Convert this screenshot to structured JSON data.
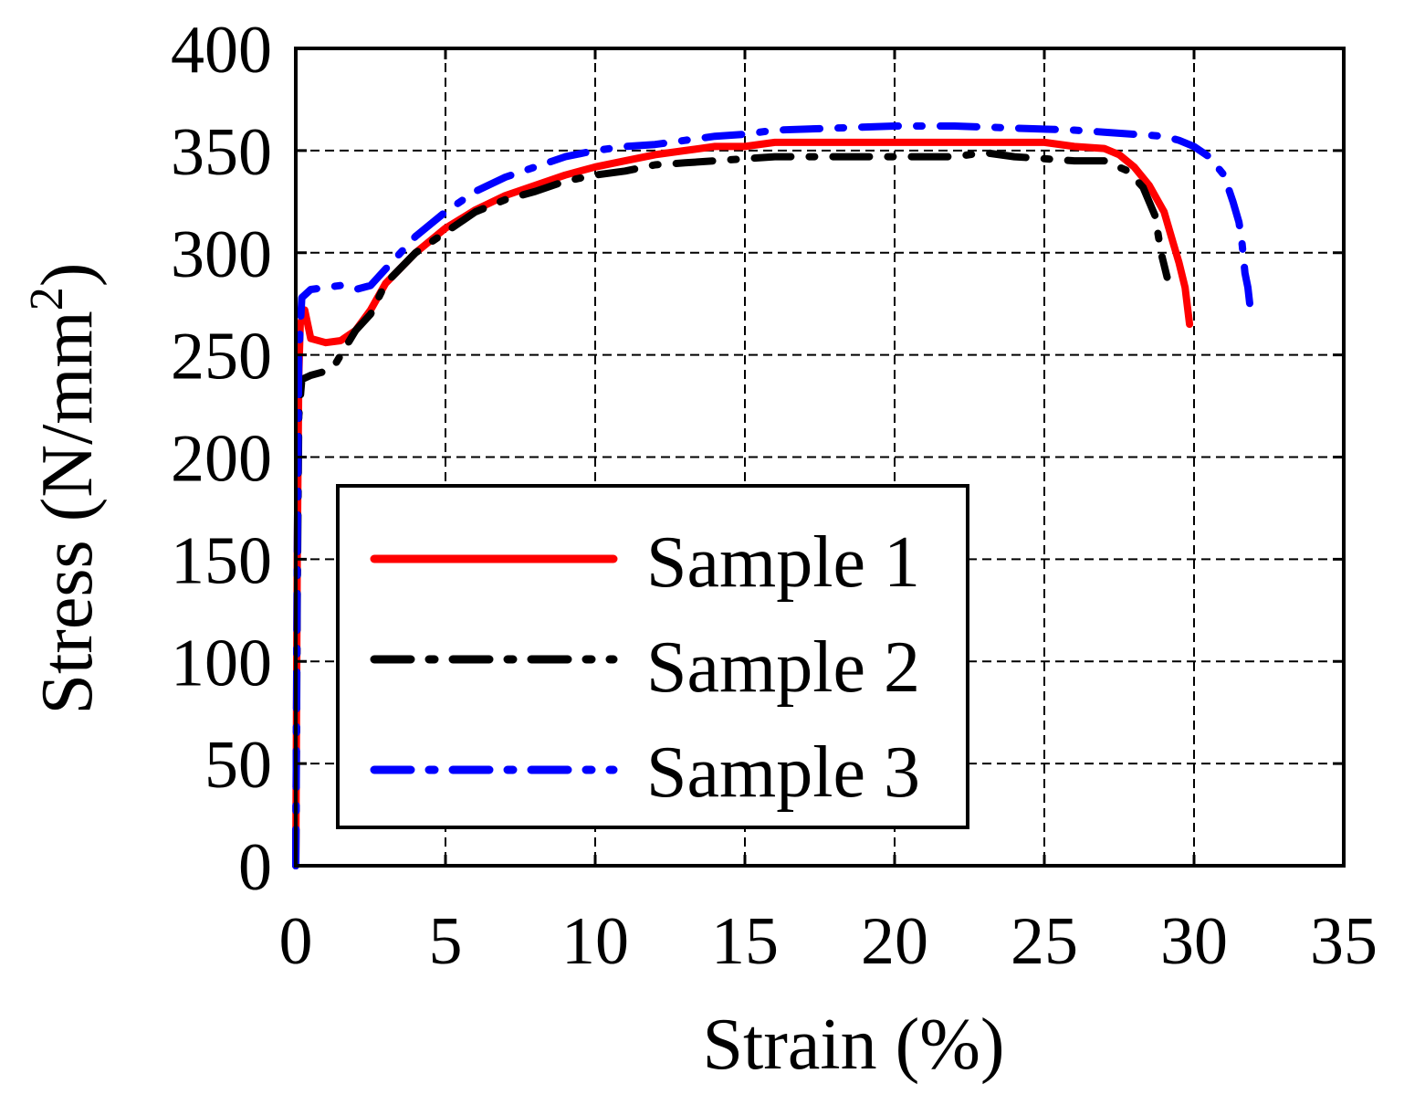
{
  "chart_data": {
    "type": "line",
    "xlabel": "Strain (%)",
    "ylabel_main": "Stress (N/mm",
    "ylabel_sup": "2",
    "ylabel_close": ")",
    "xlim": [
      0,
      35
    ],
    "ylim": [
      0,
      400
    ],
    "xticks": [
      0,
      5,
      10,
      15,
      20,
      25,
      30,
      35
    ],
    "yticks": [
      0,
      50,
      100,
      150,
      200,
      250,
      300,
      350,
      400
    ],
    "xtick_labels": [
      "0",
      "5",
      "10",
      "15",
      "20",
      "25",
      "30",
      "35"
    ],
    "ytick_labels": [
      "0",
      "50",
      "100",
      "150",
      "200",
      "250",
      "300",
      "350",
      "400"
    ],
    "grid": true,
    "legend_position": "lower-left",
    "series": [
      {
        "name": "Sample 1",
        "color": "#ff0000",
        "style": "solid",
        "x": [
          0,
          0.05,
          0.1,
          0.15,
          0.3,
          0.5,
          1.0,
          1.5,
          2.0,
          2.5,
          3.0,
          4.0,
          5.0,
          6.0,
          7.0,
          8.0,
          9.0,
          10.0,
          11.0,
          12.0,
          13.0,
          14.0,
          15.0,
          16.0,
          18.0,
          20.0,
          22.0,
          24.0,
          25.0,
          26.0,
          27.0,
          27.5,
          28.0,
          28.5,
          29.0,
          29.3,
          29.5,
          29.7,
          29.85
        ],
        "y": [
          0,
          150,
          240,
          265,
          272,
          258,
          256,
          257,
          262,
          272,
          285,
          300,
          312,
          321,
          328,
          333,
          338,
          342,
          345,
          348,
          350,
          352,
          352,
          354,
          354,
          354,
          354,
          354,
          354,
          352,
          351,
          348,
          342,
          333,
          320,
          305,
          295,
          283,
          265
        ]
      },
      {
        "name": "Sample 2",
        "color": "#000000",
        "style": "dashdot",
        "x": [
          0,
          0.05,
          0.1,
          0.2,
          0.5,
          1.0,
          1.3,
          2.0,
          2.5,
          3.0,
          4.0,
          5.0,
          6.0,
          7.0,
          8.0,
          9.0,
          10.0,
          11.0,
          12.0,
          13.0,
          14.0,
          15.0,
          16.0,
          17.0,
          18.0,
          20.0,
          22.0,
          23.0,
          24.0,
          25.0,
          26.0,
          27.0,
          27.8,
          28.3,
          28.7,
          28.9,
          29.1
        ],
        "y": [
          0,
          130,
          220,
          238,
          240,
          242,
          245,
          262,
          270,
          285,
          300,
          310,
          320,
          326,
          330,
          335,
          338,
          340,
          343,
          344,
          345,
          346,
          347,
          347,
          347,
          347,
          347,
          349,
          347,
          346,
          345,
          345,
          340,
          332,
          318,
          300,
          288
        ]
      },
      {
        "name": "Sample 3",
        "color": "#0000ff",
        "style": "dashdot",
        "x": [
          0,
          0.05,
          0.1,
          0.2,
          0.5,
          1.0,
          1.5,
          2.0,
          2.5,
          3.0,
          4.0,
          5.0,
          6.0,
          7.0,
          8.0,
          9.0,
          10.0,
          11.0,
          12.0,
          13.0,
          14.0,
          15.0,
          16.0,
          18.0,
          20.0,
          22.0,
          24.0,
          26.0,
          27.0,
          28.0,
          29.0,
          29.5,
          30.0,
          30.5,
          31.0,
          31.3,
          31.5,
          31.6,
          31.7,
          31.8,
          31.9
        ],
        "y": [
          0,
          150,
          250,
          278,
          282,
          283,
          284,
          282,
          284,
          292,
          308,
          320,
          330,
          337,
          342,
          347,
          350,
          352,
          353,
          355,
          357,
          358,
          360,
          361,
          362,
          362,
          361,
          360,
          359,
          358,
          357,
          355,
          352,
          347,
          338,
          325,
          315,
          305,
          290,
          283,
          270
        ]
      }
    ]
  }
}
